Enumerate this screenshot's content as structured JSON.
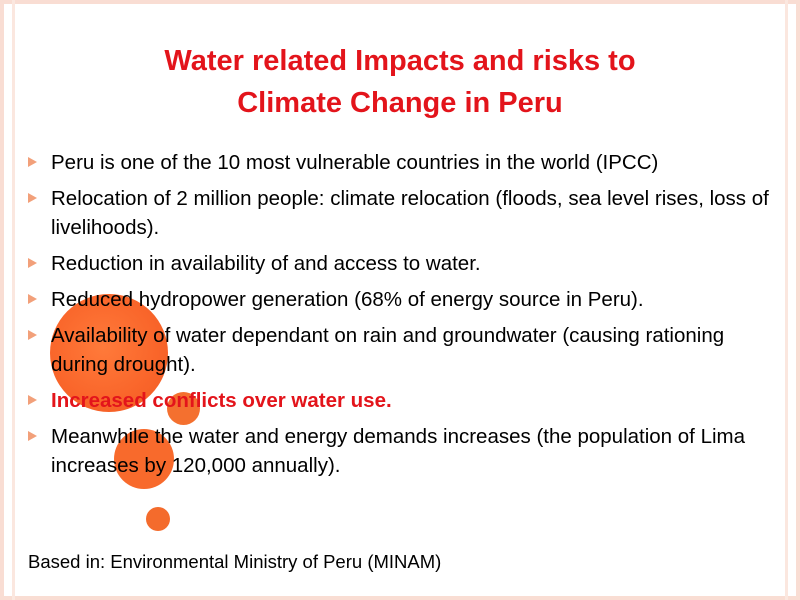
{
  "title_line1": "Water related Impacts and risks to",
  "title_line2": "Climate Change in Peru",
  "bullets": [
    {
      "text": "Peru is one of the 10 most vulnerable countries in the world (IPCC)"
    },
    {
      "text": "Relocation of 2 million people: climate relocation (floods, sea level rises, loss of livelihoods)."
    },
    {
      "text": "Reduction in availability of and access to water."
    },
    {
      "text": "Reduced hydropower generation (68% of energy source  in Peru)."
    },
    {
      "text": "Availability of water dependant on rain and groundwater (causing rationing during drought)."
    },
    {
      "text": "Increased conflicts over water use."
    },
    {
      "text": "Meanwhile the water and energy demands increases (the population of Lima increases by 120,000 annually)."
    }
  ],
  "source": "Based in: Environmental Ministry of Peru (MINAM)",
  "colors": {
    "title": "#e3141b",
    "highlight": "#e3141b",
    "bullet_marker": "#f2a07a",
    "decor_circles": "#f9652a",
    "frame": "#f9ddd3"
  }
}
